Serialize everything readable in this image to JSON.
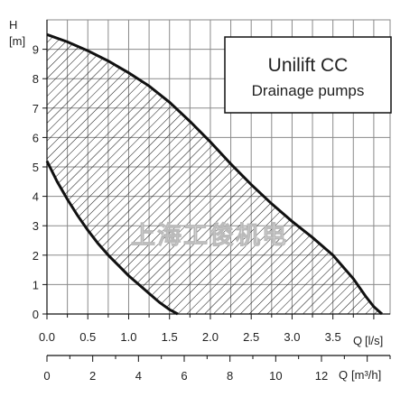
{
  "chart_data": {
    "type": "area",
    "title": "Unilift CC",
    "subtitle": "Drainage pumps",
    "y_axis": {
      "label": "H",
      "unit": "[m]",
      "range": [
        0,
        10
      ],
      "ticks": [
        "0",
        "1",
        "2",
        "3",
        "4",
        "5",
        "6",
        "7",
        "8",
        "9"
      ]
    },
    "x_axis": {
      "label": "Q",
      "unit": "[l/s]",
      "range": [
        0,
        4.2
      ],
      "ticks": [
        "0.0",
        "0.5",
        "1.0",
        "1.5",
        "2.0",
        "2.5",
        "3.0",
        "3.5"
      ]
    },
    "x_axis_secondary": {
      "label": "Q",
      "unit": "[m³/h]",
      "range": [
        0,
        15
      ],
      "ticks": [
        "0",
        "2",
        "4",
        "6",
        "8",
        "10",
        "12"
      ]
    },
    "grid": true,
    "fill": "hatched",
    "series": [
      {
        "role": "upper-boundary",
        "x": [
          0.0,
          0.25,
          0.5,
          0.75,
          1.0,
          1.25,
          1.5,
          1.75,
          2.0,
          2.25,
          2.5,
          2.75,
          3.0,
          3.25,
          3.5,
          3.75,
          3.9,
          4.0,
          4.1
        ],
        "y": [
          9.5,
          9.25,
          8.95,
          8.6,
          8.2,
          7.75,
          7.2,
          6.55,
          5.85,
          5.1,
          4.4,
          3.75,
          3.15,
          2.6,
          2.0,
          1.2,
          0.6,
          0.25,
          0.0
        ]
      },
      {
        "role": "lower-boundary",
        "x": [
          0.0,
          0.125,
          0.25,
          0.375,
          0.5,
          0.625,
          0.75,
          0.875,
          1.0,
          1.125,
          1.25,
          1.375,
          1.5,
          1.6
        ],
        "y": [
          5.2,
          4.5,
          3.9,
          3.35,
          2.85,
          2.4,
          2.0,
          1.65,
          1.3,
          1.0,
          0.7,
          0.4,
          0.15,
          0.0
        ]
      }
    ],
    "watermark": "上海工俊机电"
  }
}
